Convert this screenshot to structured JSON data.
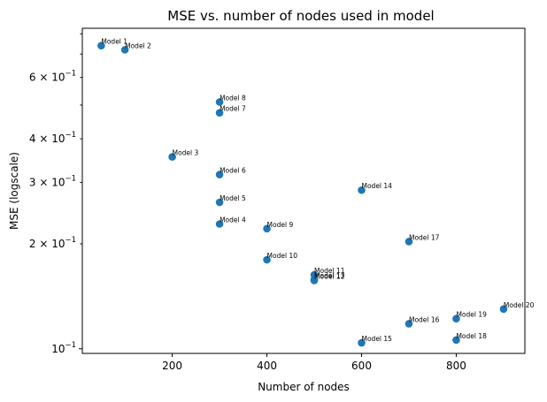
{
  "chart_data": {
    "type": "scatter",
    "title": "MSE vs. number of nodes used in model",
    "xlabel": "Number of nodes",
    "ylabel": "MSE (logscale)",
    "xlim": [
      10,
      945
    ],
    "ylim": [
      0.097,
      0.83
    ],
    "yscale": "log",
    "x_ticks": [
      200,
      400,
      600,
      800
    ],
    "y_major_ticks": [
      {
        "value": 0.1,
        "mant": "10",
        "exp": "−1"
      }
    ],
    "y_minor_ticks": [
      {
        "value": 0.2,
        "mant": "2 × 10",
        "exp": "−1"
      },
      {
        "value": 0.3,
        "mant": "3 × 10",
        "exp": "−1"
      },
      {
        "value": 0.4,
        "mant": "4 × 10",
        "exp": "−1"
      },
      {
        "value": 0.6,
        "mant": "6 × 10",
        "exp": "−1"
      }
    ],
    "y_minor_unlabeled": [
      0.5,
      0.7,
      0.8
    ],
    "grid": false,
    "marker_color": "#1f77b4",
    "points": [
      {
        "label": "Model 1",
        "x": 50,
        "y": 0.74
      },
      {
        "label": "Model 2",
        "x": 100,
        "y": 0.72
      },
      {
        "label": "Model 3",
        "x": 200,
        "y": 0.355
      },
      {
        "label": "Model 4",
        "x": 300,
        "y": 0.228
      },
      {
        "label": "Model 5",
        "x": 300,
        "y": 0.263
      },
      {
        "label": "Model 6",
        "x": 300,
        "y": 0.316
      },
      {
        "label": "Model 7",
        "x": 300,
        "y": 0.475
      },
      {
        "label": "Model 8",
        "x": 300,
        "y": 0.51
      },
      {
        "label": "Model 9",
        "x": 400,
        "y": 0.221
      },
      {
        "label": "Model 10",
        "x": 400,
        "y": 0.18
      },
      {
        "label": "Model 11",
        "x": 500,
        "y": 0.163
      },
      {
        "label": "Model 12",
        "x": 500,
        "y": 0.157
      },
      {
        "label": "Model 13",
        "x": 500,
        "y": 0.158
      },
      {
        "label": "Model 14",
        "x": 600,
        "y": 0.285
      },
      {
        "label": "Model 15",
        "x": 600,
        "y": 0.104
      },
      {
        "label": "Model 16",
        "x": 700,
        "y": 0.118
      },
      {
        "label": "Model 17",
        "x": 700,
        "y": 0.203
      },
      {
        "label": "Model 18",
        "x": 800,
        "y": 0.106
      },
      {
        "label": "Model 19",
        "x": 800,
        "y": 0.122
      },
      {
        "label": "Model 20",
        "x": 900,
        "y": 0.13
      }
    ]
  }
}
